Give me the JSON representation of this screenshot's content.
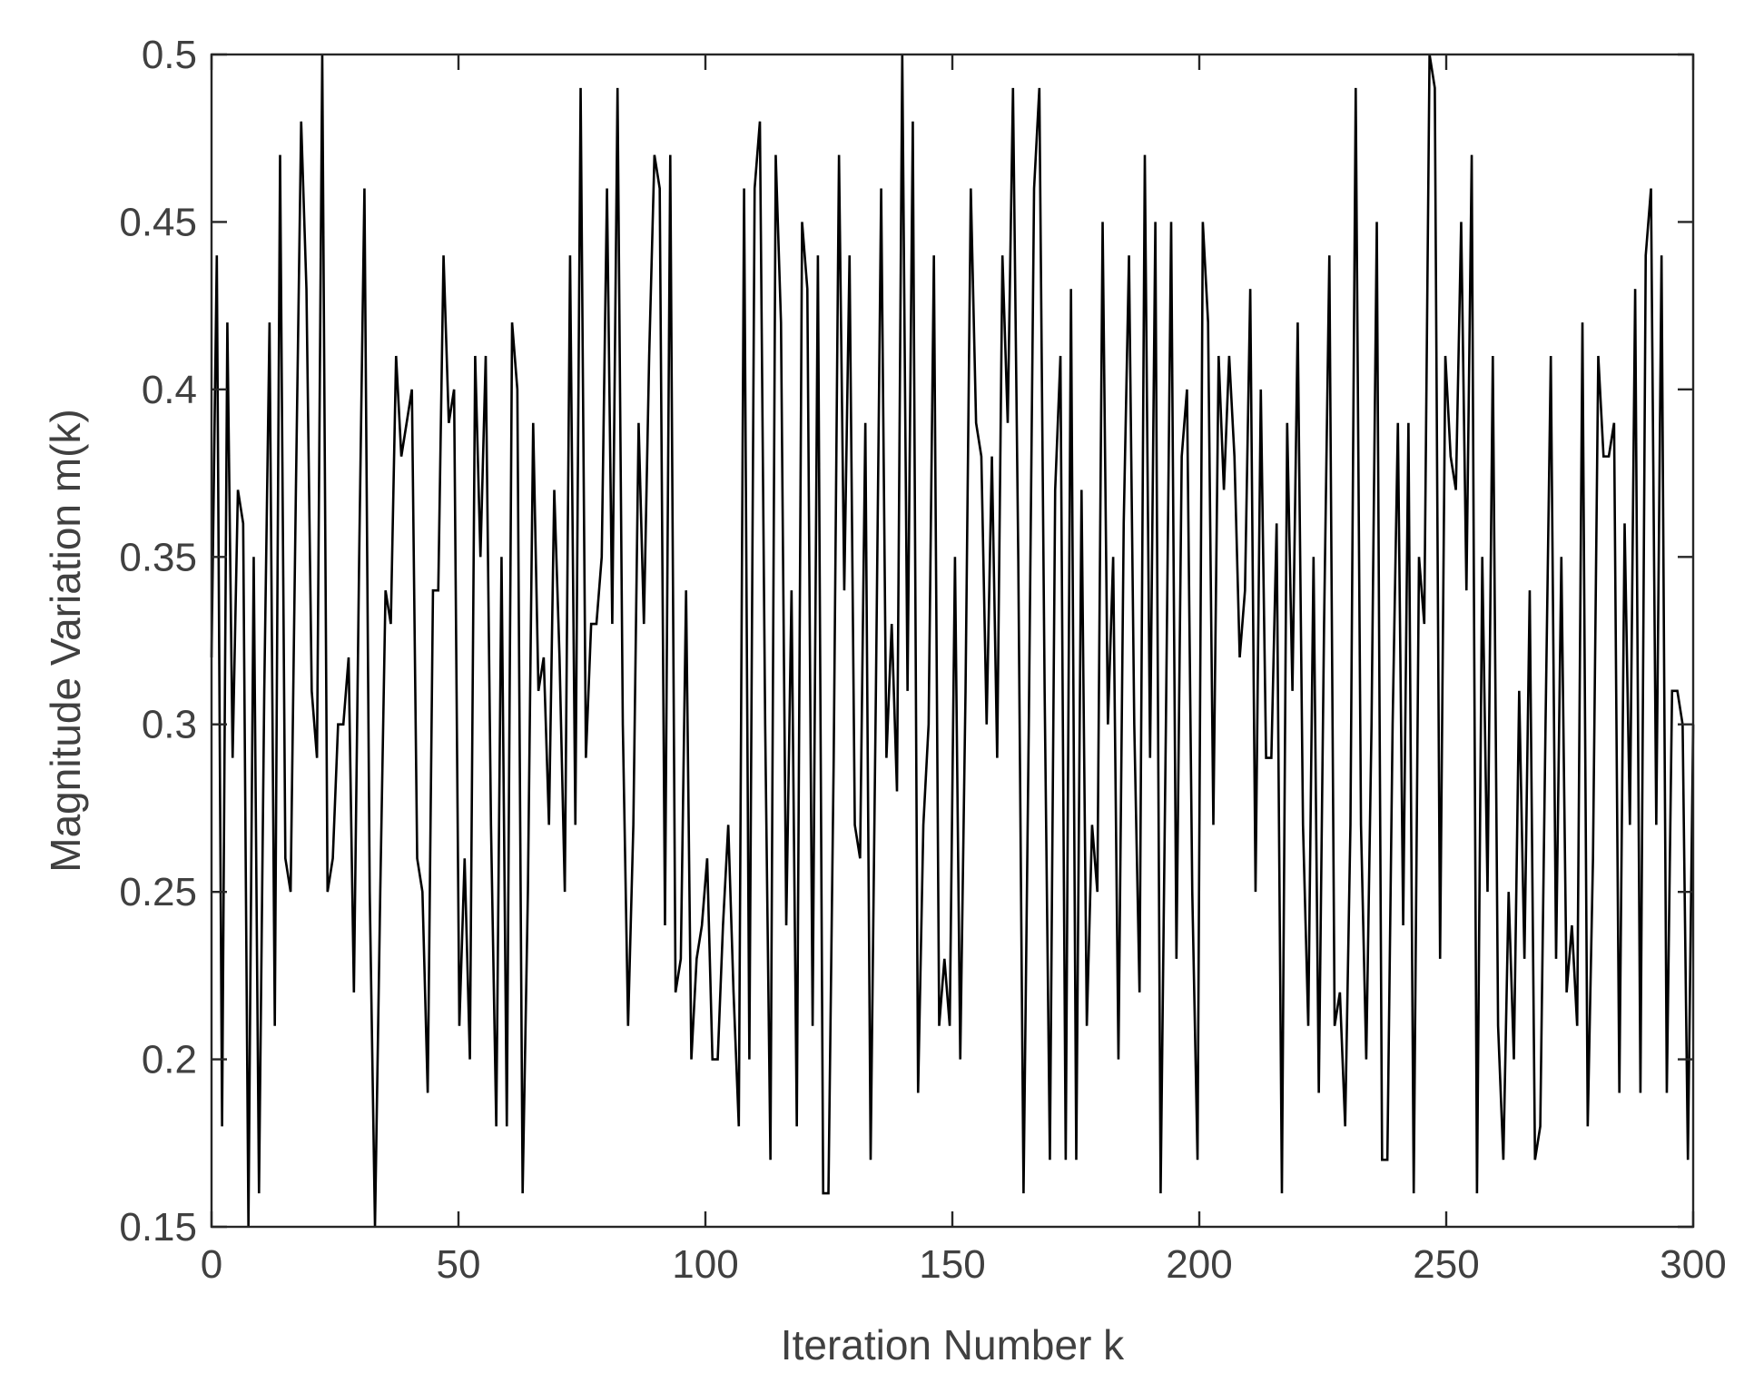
{
  "chart_data": {
    "type": "line",
    "title": "",
    "xlabel": "Iteration Number k",
    "ylabel": "Magnitude Variation m(k)",
    "xlim": [
      0,
      300
    ],
    "ylim": [
      0.15,
      0.5
    ],
    "xticks": [
      0,
      50,
      100,
      150,
      200,
      250,
      300
    ],
    "xtick_labels": [
      "0",
      "50",
      "100",
      "150",
      "200",
      "250",
      "300"
    ],
    "yticks": [
      0.15,
      0.2,
      0.25,
      0.3,
      0.35,
      0.4,
      0.45,
      0.5
    ],
    "ytick_labels": [
      "0.15",
      "0.2",
      "0.25",
      "0.3",
      "0.35",
      "0.4",
      "0.45",
      "0.5"
    ],
    "grid": false,
    "legend": "none",
    "line_color": "#000000",
    "series": [
      {
        "values": [
          0.32,
          0.44,
          0.18,
          0.42,
          0.29,
          0.37,
          0.36,
          0.15,
          0.35,
          0.16,
          0.31,
          0.42,
          0.21,
          0.47,
          0.26,
          0.25,
          0.37,
          0.48,
          0.43,
          0.31,
          0.29,
          0.5,
          0.25,
          0.26,
          0.3,
          0.3,
          0.32,
          0.22,
          0.35,
          0.46,
          0.25,
          0.15,
          0.25,
          0.34,
          0.33,
          0.41,
          0.38,
          0.39,
          0.4,
          0.26,
          0.25,
          0.19,
          0.34,
          0.34,
          0.44,
          0.39,
          0.4,
          0.21,
          0.26,
          0.2,
          0.41,
          0.35,
          0.41,
          0.27,
          0.18,
          0.35,
          0.18,
          0.42,
          0.4,
          0.16,
          0.25,
          0.39,
          0.31,
          0.32,
          0.27,
          0.37,
          0.32,
          0.25,
          0.44,
          0.27,
          0.49,
          0.29,
          0.33,
          0.33,
          0.35,
          0.46,
          0.33,
          0.49,
          0.3,
          0.21,
          0.27,
          0.39,
          0.33,
          0.41,
          0.47,
          0.46,
          0.24,
          0.47,
          0.22,
          0.23,
          0.34,
          0.2,
          0.23,
          0.24,
          0.26,
          0.2,
          0.2,
          0.24,
          0.27,
          0.22,
          0.18,
          0.46,
          0.2,
          0.46,
          0.48,
          0.3,
          0.17,
          0.47,
          0.42,
          0.24,
          0.34,
          0.18,
          0.45,
          0.43,
          0.21,
          0.44,
          0.16,
          0.16,
          0.29,
          0.47,
          0.34,
          0.44,
          0.27,
          0.26,
          0.39,
          0.17,
          0.31,
          0.46,
          0.29,
          0.33,
          0.28,
          0.5,
          0.31,
          0.48,
          0.19,
          0.27,
          0.3,
          0.44,
          0.21,
          0.23,
          0.21,
          0.35,
          0.2,
          0.31,
          0.46,
          0.39,
          0.38,
          0.3,
          0.38,
          0.29,
          0.44,
          0.39,
          0.49,
          0.35,
          0.16,
          0.3,
          0.46,
          0.49,
          0.31,
          0.17,
          0.37,
          0.41,
          0.17,
          0.43,
          0.17,
          0.37,
          0.21,
          0.27,
          0.25,
          0.45,
          0.3,
          0.35,
          0.2,
          0.36,
          0.44,
          0.3,
          0.22,
          0.47,
          0.29,
          0.45,
          0.16,
          0.3,
          0.45,
          0.23,
          0.38,
          0.4,
          0.25,
          0.17,
          0.45,
          0.42,
          0.27,
          0.41,
          0.37,
          0.41,
          0.38,
          0.32,
          0.34,
          0.43,
          0.25,
          0.4,
          0.29,
          0.29,
          0.36,
          0.16,
          0.39,
          0.31,
          0.42,
          0.27,
          0.21,
          0.35,
          0.19,
          0.33,
          0.44,
          0.21,
          0.22,
          0.18,
          0.27,
          0.49,
          0.27,
          0.2,
          0.3,
          0.45,
          0.17,
          0.17,
          0.3,
          0.39,
          0.24,
          0.39,
          0.16,
          0.35,
          0.33,
          0.5,
          0.49,
          0.23,
          0.41,
          0.38,
          0.37,
          0.45,
          0.34,
          0.47,
          0.16,
          0.35,
          0.25,
          0.41,
          0.21,
          0.17,
          0.25,
          0.2,
          0.31,
          0.23,
          0.34,
          0.17,
          0.18,
          0.3,
          0.41,
          0.23,
          0.35,
          0.22,
          0.24,
          0.21,
          0.42,
          0.18,
          0.26,
          0.41,
          0.38,
          0.38,
          0.39,
          0.19,
          0.36,
          0.27,
          0.43,
          0.19,
          0.44,
          0.46,
          0.27,
          0.44,
          0.19,
          0.31,
          0.31,
          0.3,
          0.17,
          0.3
        ]
      }
    ]
  }
}
